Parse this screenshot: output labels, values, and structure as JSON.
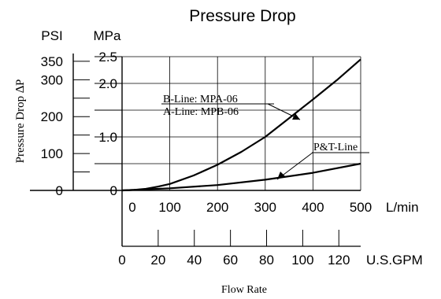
{
  "chart_data": {
    "type": "line",
    "title": "Pressure Drop",
    "ylabel": "Pressure Drop ∆P",
    "xlabel": "Flow Rate",
    "x_unit_primary": "L/min",
    "x_unit_secondary": "U.S.GPM",
    "y_unit_left": "PSI",
    "y_unit_right": "MPa",
    "xlim": [
      0,
      500
    ],
    "ylim_mpa": [
      0,
      2.5
    ],
    "x_ticks_lmin": [
      "0",
      "100",
      "200",
      "300",
      "400",
      "500"
    ],
    "x_ticks_gpm": [
      "0",
      "20",
      "40",
      "60",
      "80",
      "100",
      "120"
    ],
    "y_ticks_mpa": [
      "0",
      "1.0",
      "2.0",
      "2.5"
    ],
    "y_ticks_psi": [
      "0",
      "100",
      "200",
      "300",
      "350"
    ],
    "grid": true,
    "series": [
      {
        "name": "A-Line: MPB-06",
        "color": "#000000",
        "x": [
          0,
          25,
          50,
          75,
          100,
          150,
          200,
          250,
          300,
          350,
          400,
          450,
          500
        ],
        "y": [
          0,
          0.01,
          0.03,
          0.07,
          0.12,
          0.28,
          0.48,
          0.72,
          1.0,
          1.35,
          1.7,
          2.06,
          2.45
        ]
      },
      {
        "name": "P&T-Line",
        "color": "#000000",
        "x": [
          0,
          100,
          200,
          300,
          400,
          500
        ],
        "y": [
          0,
          0.04,
          0.1,
          0.2,
          0.33,
          0.5
        ]
      }
    ],
    "annotations": {
      "b_line": "B-Line: MPA-06",
      "a_line": "A-Line: MPB-06",
      "pt_line": "P&T-Line"
    }
  }
}
